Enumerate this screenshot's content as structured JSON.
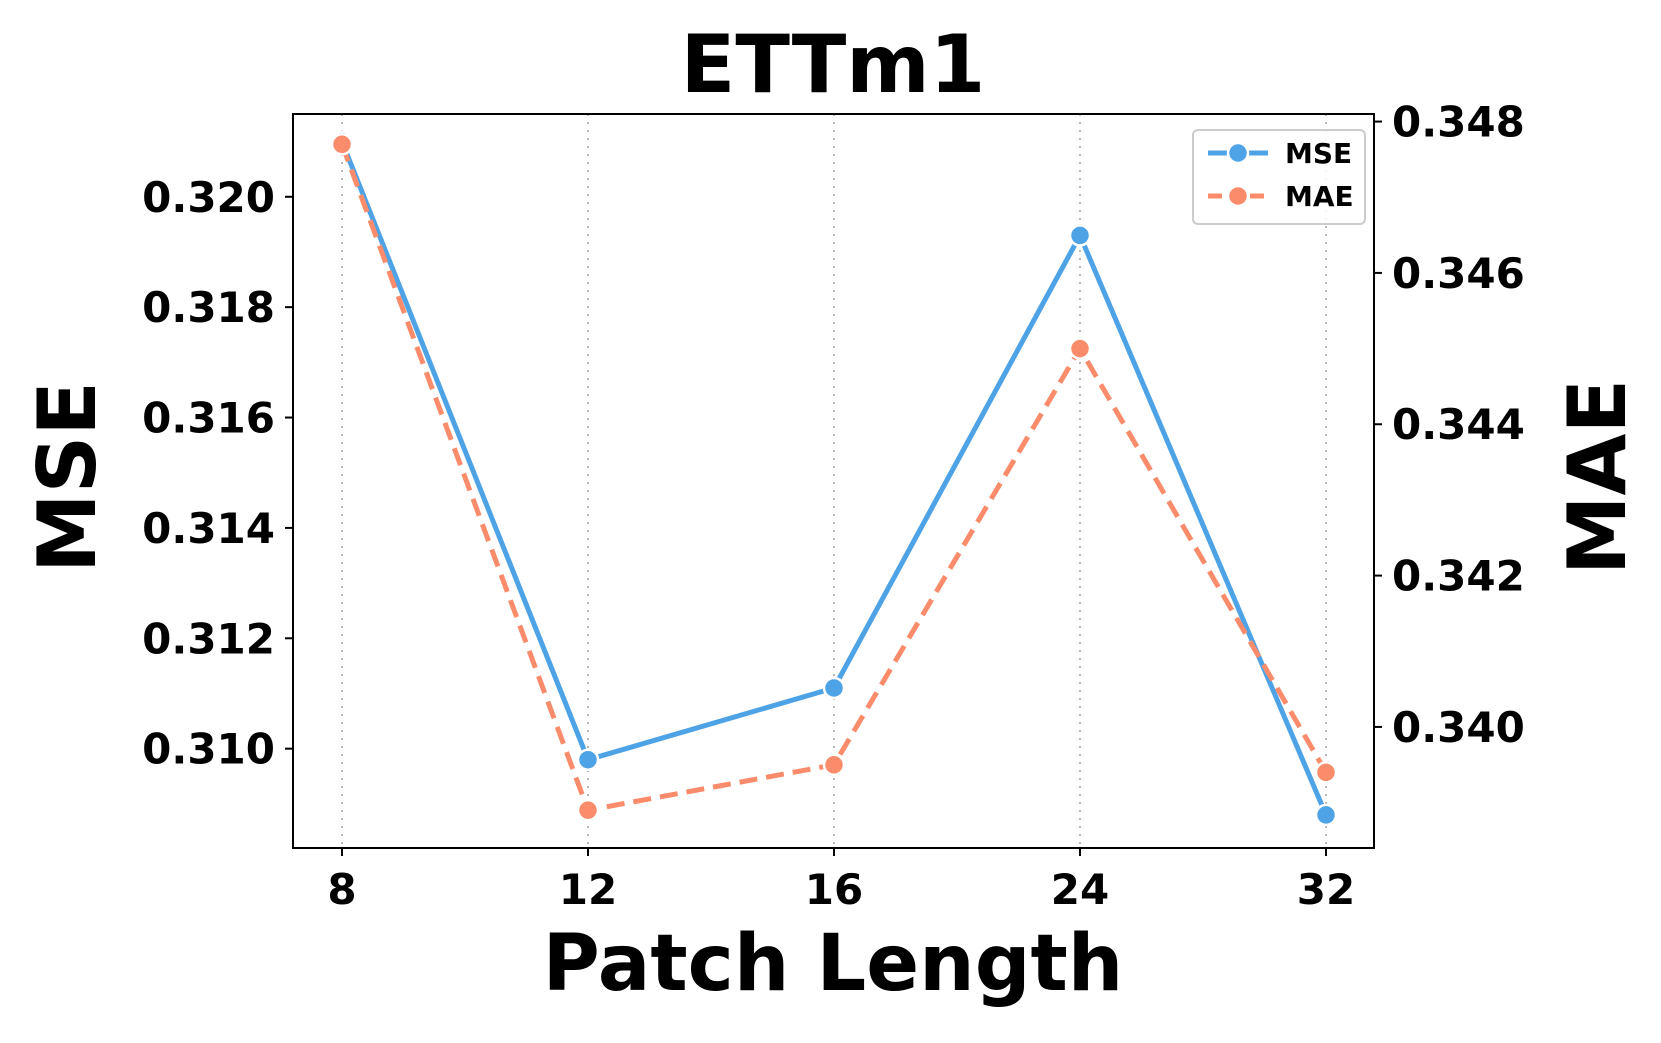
{
  "chart_data": {
    "type": "line",
    "title": "ETTm1",
    "xlabel": "Patch Length",
    "ylabel_left": "MSE",
    "ylabel_right": "MAE",
    "categories": [
      "8",
      "12",
      "16",
      "24",
      "32"
    ],
    "y_left": {
      "range": [
        0.3082,
        0.3215
      ],
      "ticks": [
        0.31,
        0.312,
        0.314,
        0.316,
        0.318,
        0.32
      ],
      "tick_labels": [
        "0.310",
        "0.312",
        "0.314",
        "0.316",
        "0.318",
        "0.320"
      ]
    },
    "y_right": {
      "range": [
        0.3384,
        0.3481
      ],
      "ticks": [
        0.34,
        0.342,
        0.344,
        0.346,
        0.348
      ],
      "tick_labels": [
        "0.340",
        "0.342",
        "0.344",
        "0.346",
        "0.348"
      ]
    },
    "series": [
      {
        "name": "MSE",
        "axis": "left",
        "values": [
          0.321,
          0.3098,
          0.3111,
          0.3193,
          0.3088
        ],
        "color": "#4ea3e6",
        "style": "solid"
      },
      {
        "name": "MAE",
        "axis": "right",
        "values": [
          0.3477,
          0.3389,
          0.3395,
          0.345,
          0.3394
        ],
        "color": "#fa8c6b",
        "style": "dashed"
      }
    ],
    "grid": "x-dotted",
    "legend_position": "top-right"
  }
}
